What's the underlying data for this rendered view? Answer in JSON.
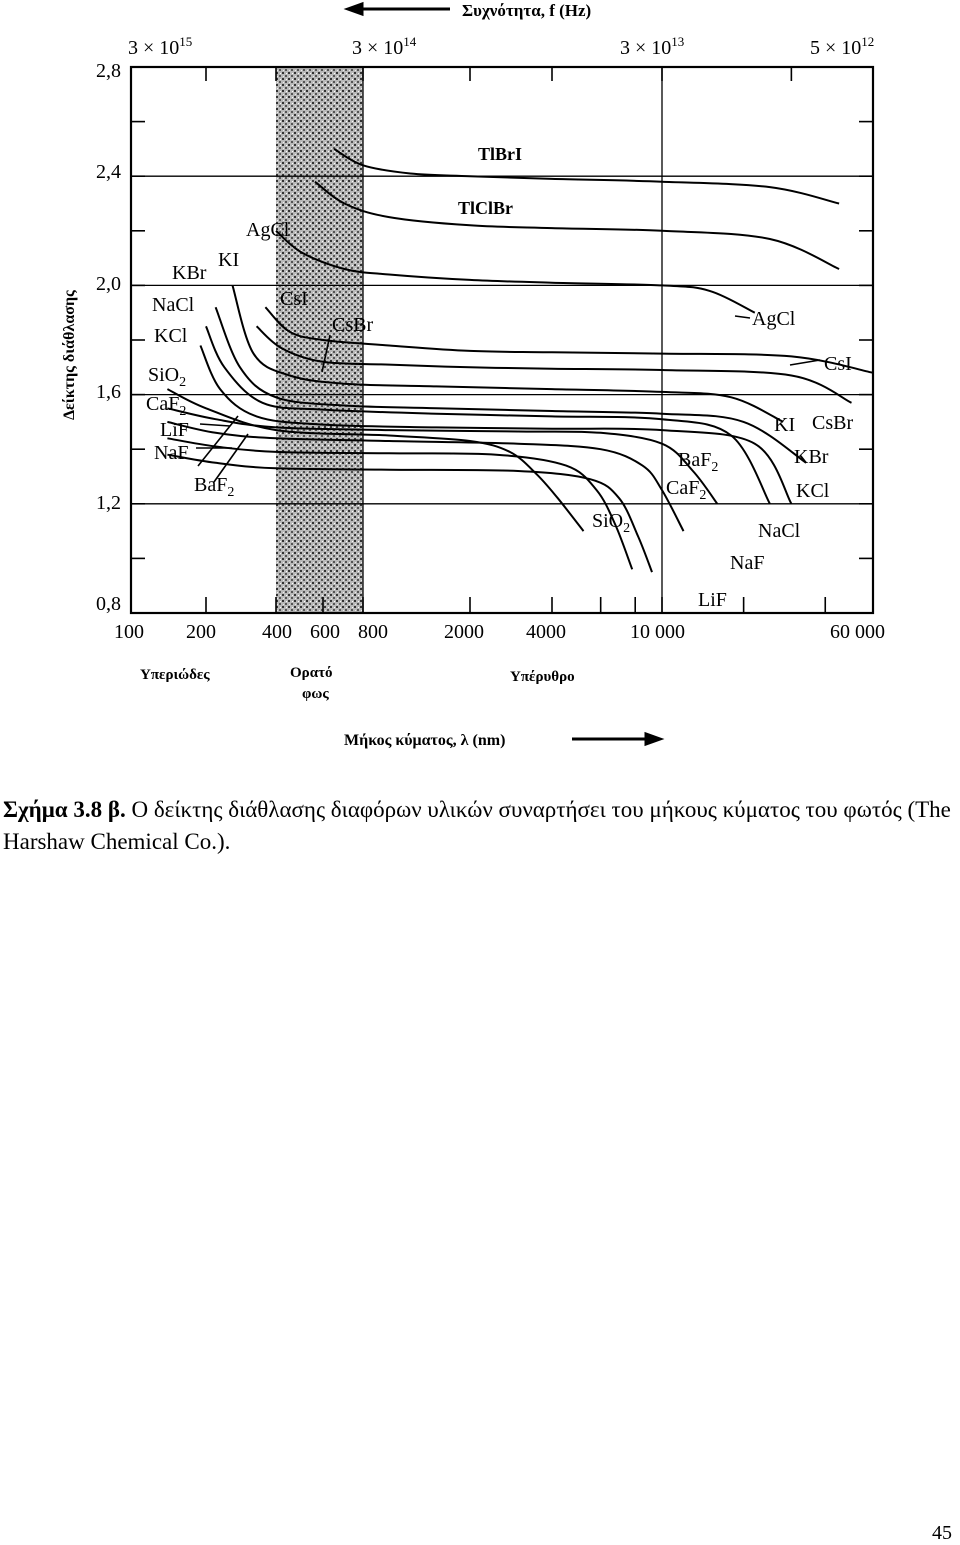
{
  "chart_data": {
    "type": "line",
    "title": "",
    "xlabel": "Μήκος κύματος, λ (nm)",
    "ylabel": "Δείκτης διάθλασης",
    "top_axis_label": "Συχνότητα, f (Hz)",
    "x_scale": "log",
    "xlim": [
      100,
      60000
    ],
    "ylim": [
      0.8,
      2.8
    ],
    "grid": true,
    "x_ticks": [
      "100",
      "200",
      "400",
      "600",
      "800",
      "2000",
      "4000",
      "10 000",
      "60 000"
    ],
    "y_ticks": [
      "0,8",
      "1,2",
      "1,6",
      "2,0",
      "2,4",
      "2,8"
    ],
    "top_ticks": [
      {
        "base": "3 × 10",
        "exp": "15"
      },
      {
        "base": "3 × 10",
        "exp": "14"
      },
      {
        "base": "3 × 10",
        "exp": "13"
      },
      {
        "base": "5 × 10",
        "exp": "12"
      }
    ],
    "regions": [
      "Υπεριώδες",
      "Ορατό φως",
      "Υπέρυθρο"
    ],
    "series": [
      {
        "name": "TlBrI",
        "x": [
          650,
          800,
          1200,
          2000,
          4000,
          10000,
          25000,
          45000
        ],
        "y": [
          2.5,
          2.44,
          2.41,
          2.4,
          2.39,
          2.38,
          2.36,
          2.3
        ]
      },
      {
        "name": "TlClBr",
        "x": [
          560,
          700,
          1000,
          2000,
          4000,
          10000,
          25000,
          45000
        ],
        "y": [
          2.38,
          2.3,
          2.25,
          2.22,
          2.21,
          2.2,
          2.17,
          2.06
        ]
      },
      {
        "name": "AgCl",
        "x": [
          400,
          500,
          700,
          1000,
          2000,
          4000,
          10000,
          15000,
          22000
        ],
        "y": [
          2.2,
          2.12,
          2.06,
          2.04,
          2.02,
          2.01,
          2.0,
          1.98,
          1.9
        ]
      },
      {
        "name": "CsI",
        "x": [
          360,
          450,
          600,
          1000,
          2000,
          4000,
          10000,
          30000,
          60000
        ],
        "y": [
          1.92,
          1.83,
          1.8,
          1.78,
          1.76,
          1.755,
          1.75,
          1.74,
          1.68
        ]
      },
      {
        "name": "CsBr",
        "x": [
          330,
          420,
          600,
          1000,
          2000,
          4000,
          10000,
          30000,
          50000
        ],
        "y": [
          1.85,
          1.77,
          1.72,
          1.71,
          1.7,
          1.695,
          1.69,
          1.67,
          1.57
        ]
      },
      {
        "name": "KI",
        "x": [
          260,
          320,
          450,
          700,
          1500,
          4000,
          10000,
          18000,
          28000
        ],
        "y": [
          2.0,
          1.75,
          1.67,
          1.64,
          1.63,
          1.62,
          1.61,
          1.59,
          1.5
        ]
      },
      {
        "name": "KBr",
        "x": [
          220,
          280,
          400,
          700,
          1500,
          4000,
          10000,
          20000,
          34000
        ],
        "y": [
          1.92,
          1.7,
          1.59,
          1.56,
          1.55,
          1.54,
          1.53,
          1.5,
          1.35
        ]
      },
      {
        "name": "NaCl",
        "x": [
          200,
          240,
          350,
          600,
          1500,
          4000,
          10000,
          18000,
          25000
        ],
        "y": [
          1.85,
          1.7,
          1.57,
          1.545,
          1.53,
          1.52,
          1.51,
          1.45,
          1.2
        ]
      },
      {
        "name": "KCl",
        "x": [
          190,
          230,
          330,
          600,
          1500,
          4000,
          10000,
          22000,
          30000
        ],
        "y": [
          1.78,
          1.62,
          1.52,
          1.49,
          1.48,
          1.475,
          1.47,
          1.42,
          1.2
        ]
      },
      {
        "name": "SiO2",
        "x": [
          140,
          200,
          400,
          1000,
          2000,
          2800,
          3500,
          4200,
          5200
        ],
        "y": [
          1.62,
          1.55,
          1.47,
          1.45,
          1.43,
          1.39,
          1.31,
          1.22,
          1.1
        ]
      },
      {
        "name": "BaF2",
        "x": [
          140,
          220,
          400,
          1000,
          3000,
          6000,
          10000,
          13000,
          16000
        ],
        "y": [
          1.55,
          1.51,
          1.48,
          1.47,
          1.465,
          1.46,
          1.42,
          1.32,
          1.2
        ]
      },
      {
        "name": "CaF2",
        "x": [
          140,
          220,
          400,
          1000,
          3000,
          6000,
          8500,
          10000,
          12000
        ],
        "y": [
          1.5,
          1.46,
          1.44,
          1.43,
          1.42,
          1.4,
          1.34,
          1.25,
          1.1
        ]
      },
      {
        "name": "NaF",
        "x": [
          140,
          220,
          400,
          1000,
          3000,
          5500,
          7000,
          8200,
          9200
        ],
        "y": [
          1.38,
          1.35,
          1.33,
          1.325,
          1.32,
          1.29,
          1.22,
          1.08,
          0.95
        ]
      },
      {
        "name": "LiF",
        "x": [
          140,
          220,
          400,
          1000,
          2500,
          4500,
          5800,
          6800,
          7800
        ],
        "y": [
          1.44,
          1.41,
          1.39,
          1.385,
          1.38,
          1.34,
          1.25,
          1.12,
          0.96
        ]
      }
    ],
    "labels_left": [
      "KBr",
      "KI",
      "NaCl",
      "KCl",
      "SiO2",
      "CaF2",
      "LiF",
      "NaF",
      "BaF2",
      "AgCl",
      "CsI",
      "CsBr"
    ],
    "labels_right": [
      "TlBrI",
      "TlClBr",
      "AgCl",
      "CsI",
      "KI",
      "CsBr",
      "KBr",
      "BaF2",
      "CaF2",
      "KCl",
      "SiO2",
      "NaCl",
      "NaF",
      "LiF"
    ]
  },
  "caption": {
    "label": "Σχήμα 3.8 β.",
    "text": " Ο δείκτης διάθλασης διαφόρων υλικών συναρτήσει του μήκους κύματος του φωτός (The Harshaw Chemical Co.)."
  },
  "page_number": "45"
}
